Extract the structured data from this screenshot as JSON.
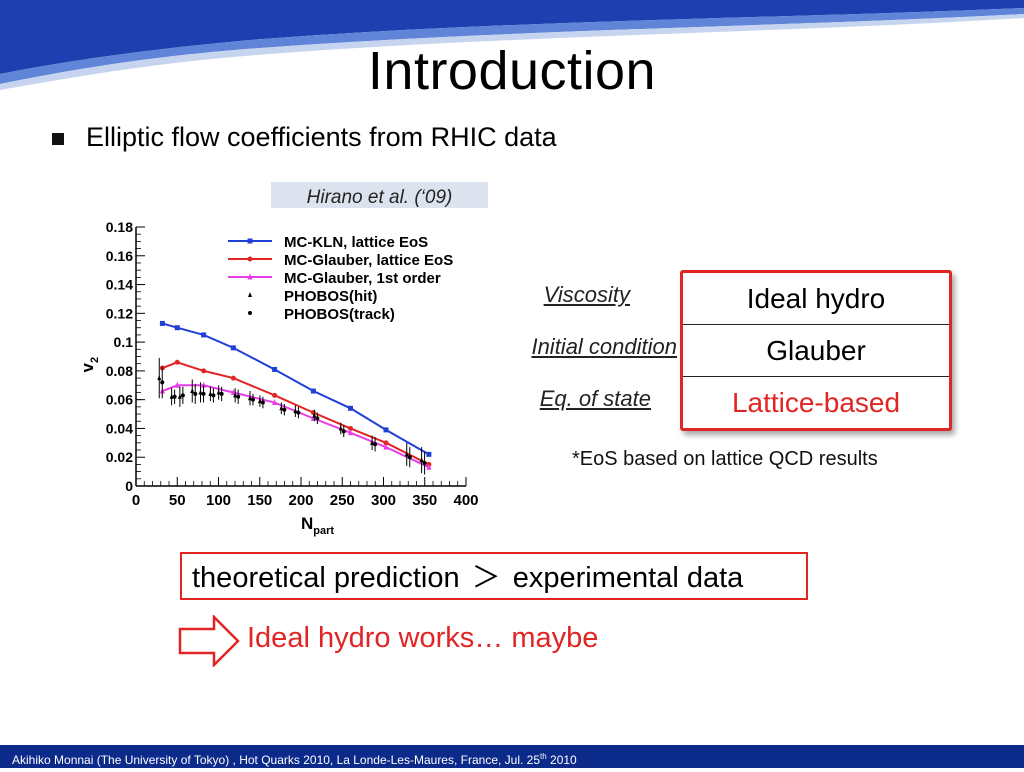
{
  "slide": {
    "title": "Introduction",
    "bullet": "Elliptic flow coefficients from RHIC data",
    "citation": "Hirano et al. (‘09)"
  },
  "params": {
    "labels": [
      "Viscosity",
      "Initial condition",
      "Eq. of state"
    ],
    "values": [
      "Ideal hydro",
      "Glauber",
      "Lattice-based"
    ],
    "highlight_color": "#e12424"
  },
  "footnote": "*EoS based on lattice QCD results",
  "conclusion": {
    "left": "theoretical prediction",
    "relation": "＞",
    "right": "experimental data",
    "arrow_icon": "hollow-right-arrow-icon",
    "result": "Ideal hydro works… maybe"
  },
  "footer": {
    "text_before": "Akihiko Monnai (The University of Tokyo) , Hot Quarks 2010,  La Londe-Les-Maures, France, Jul. 25",
    "superscript": "th",
    "text_after": " 2010"
  },
  "chart_data": {
    "type": "line",
    "xlabel": "N",
    "xlabel_sub": "part",
    "ylabel": "v",
    "ylabel_sub": "2",
    "xlim": [
      0,
      400
    ],
    "ylim": [
      0,
      0.18
    ],
    "xticks": [
      "0",
      "50",
      "100",
      "150",
      "200",
      "250",
      "300",
      "350",
      "400"
    ],
    "yticks": [
      "0",
      "0.02",
      "0.04",
      "0.06",
      "0.08",
      "0.1",
      "0.12",
      "0.14",
      "0.16",
      "0.18"
    ],
    "legend_position": "top-right",
    "series": [
      {
        "name": "MC-KLN, lattice EoS",
        "color": "#1f3fd6",
        "marker": "square",
        "x": [
          32,
          50,
          82,
          118,
          168,
          215,
          260,
          303,
          355
        ],
        "y": [
          0.113,
          0.11,
          0.105,
          0.096,
          0.081,
          0.066,
          0.054,
          0.039,
          0.022
        ]
      },
      {
        "name": "MC-Glauber, lattice EoS",
        "color": "#e12424",
        "marker": "circle",
        "x": [
          32,
          50,
          82,
          118,
          168,
          215,
          260,
          303,
          355
        ],
        "y": [
          0.082,
          0.086,
          0.08,
          0.075,
          0.063,
          0.051,
          0.04,
          0.03,
          0.015
        ]
      },
      {
        "name": "MC-Glauber, 1st order",
        "color": "#e83de8",
        "marker": "triangle",
        "x": [
          32,
          50,
          82,
          118,
          168,
          215,
          260,
          303,
          355
        ],
        "y": [
          0.066,
          0.07,
          0.07,
          0.065,
          0.058,
          0.047,
          0.037,
          0.027,
          0.013
        ]
      }
    ],
    "data_series": [
      {
        "name": "PHOBOS(hit)",
        "marker": "triangle",
        "x": [
          30,
          45,
          55,
          70,
          80,
          92,
          102,
          122,
          140,
          152,
          178,
          195,
          218,
          250,
          288,
          330,
          348
        ],
        "y": [
          0.075,
          0.062,
          0.062,
          0.066,
          0.065,
          0.064,
          0.065,
          0.063,
          0.061,
          0.059,
          0.054,
          0.052,
          0.049,
          0.04,
          0.03,
          0.022,
          0.018
        ],
        "err": [
          0.014,
          0.006,
          0.007,
          0.008,
          0.007,
          0.005,
          0.005,
          0.005,
          0.005,
          0.004,
          0.004,
          0.004,
          0.004,
          0.004,
          0.005,
          0.008,
          0.009
        ]
      },
      {
        "name": "PHOBOS(track)",
        "marker": "circle",
        "x": [
          30,
          45,
          55,
          70,
          80,
          92,
          102,
          122,
          140,
          152,
          178,
          195,
          218,
          250,
          288,
          330,
          348
        ],
        "y": [
          0.072,
          0.062,
          0.063,
          0.064,
          0.064,
          0.063,
          0.064,
          0.062,
          0.06,
          0.058,
          0.053,
          0.051,
          0.047,
          0.038,
          0.029,
          0.02,
          0.016
        ],
        "err": [
          0.011,
          0.005,
          0.006,
          0.007,
          0.006,
          0.005,
          0.005,
          0.005,
          0.004,
          0.004,
          0.004,
          0.004,
          0.004,
          0.004,
          0.005,
          0.007,
          0.008
        ]
      }
    ]
  }
}
